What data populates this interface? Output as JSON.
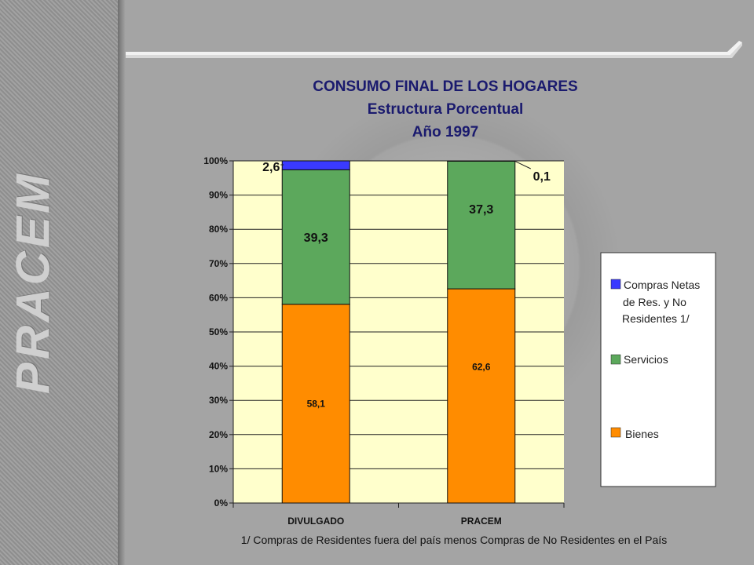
{
  "side_title": "PRACEM",
  "colors": {
    "plot_bg": "#ffffcc",
    "bienes": "#ff8c00",
    "servicios": "#5ca85c",
    "compras": "#3a3aff"
  },
  "footnote": "1/ Compras de Residentes fuera del país menos Compras de No Residentes en el País",
  "chart_data": {
    "type": "bar",
    "stacked": true,
    "title": "CONSUMO FINAL DE LOS HOGARES",
    "subtitle_lines": [
      "Estructura Porcentual",
      "Año 1997"
    ],
    "categories": [
      "DIVULGADO",
      "PRACEM"
    ],
    "ylim": [
      0,
      100
    ],
    "yticks": [
      "0%",
      "10%",
      "20%",
      "30%",
      "40%",
      "50%",
      "60%",
      "70%",
      "80%",
      "90%",
      "100%"
    ],
    "grid": true,
    "legend_position": "right",
    "series": [
      {
        "name": "Bienes",
        "values": [
          58.1,
          62.6
        ],
        "labels": [
          "58,1",
          "62,6"
        ]
      },
      {
        "name": "Servicios",
        "values": [
          39.3,
          37.3
        ],
        "labels": [
          "39,3",
          "37,3"
        ]
      },
      {
        "name_lines": [
          "Compras Netas",
          "de Res. y No",
          "Residentes 1/"
        ],
        "values": [
          2.6,
          0.1
        ],
        "labels": [
          "2,6",
          "0,1"
        ]
      }
    ]
  }
}
